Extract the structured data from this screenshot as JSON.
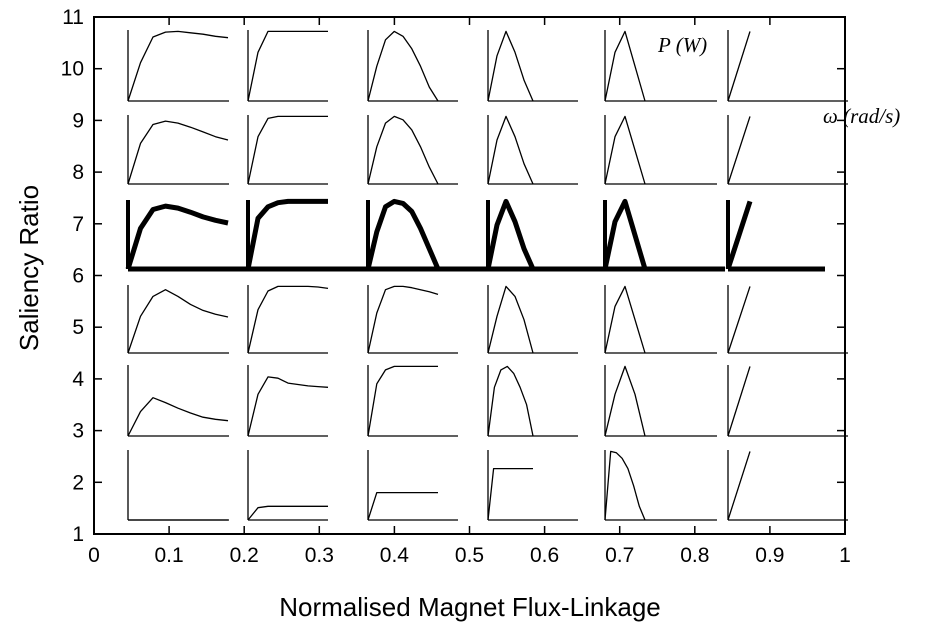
{
  "chart_data": {
    "type": "line",
    "title": "",
    "xlabel": "Normalised Magnet Flux-Linkage",
    "ylabel": "Saliency Ratio",
    "xlim": [
      0,
      1
    ],
    "ylim": [
      1,
      11
    ],
    "x_ticks": [
      "0",
      "0.1",
      "0.2",
      "0.3",
      "0.4",
      "0.5",
      "0.6",
      "0.7",
      "0.8",
      "0.9",
      "1"
    ],
    "y_ticks": [
      "1",
      "2",
      "3",
      "4",
      "5",
      "6",
      "7",
      "8",
      "9",
      "10",
      "11"
    ],
    "grid": false,
    "annotations": {
      "power": "P (W)",
      "speed": "ω (rad/s)"
    },
    "highlighted_row": 7,
    "curve_colors": {
      "normal": "#000000",
      "highlight": "#000000"
    },
    "rows": [
      {
        "saliency": 10,
        "curves": [
          {
            "flux": 0.1,
            "power": [
              0,
              0.55,
              0.92,
              0.99,
              1.0,
              0.98,
              0.96,
              0.93,
              0.91
            ]
          },
          {
            "flux": 0.3,
            "power": [
              0,
              0.7,
              1.0,
              1.0,
              1.0,
              1.0,
              1.0,
              1.0,
              1.0
            ]
          },
          {
            "flux": 0.4,
            "power": [
              0,
              0.5,
              0.88,
              1.0,
              0.93,
              0.75,
              0.5,
              0.2,
              0
            ]
          },
          {
            "flux": 0.55,
            "power": [
              0,
              0.65,
              1.0,
              0.7,
              0.3,
              0
            ]
          },
          {
            "flux": 0.7,
            "power": [
              0,
              0.7,
              1.0,
              0.5,
              0
            ]
          },
          {
            "flux": 0.85,
            "power": [
              0,
              1.0
            ]
          }
        ]
      },
      {
        "saliency": 8.5,
        "curves": [
          {
            "flux": 0.1,
            "power": [
              0,
              0.6,
              0.88,
              0.93,
              0.9,
              0.84,
              0.77,
              0.7,
              0.65
            ]
          },
          {
            "flux": 0.3,
            "power": [
              0,
              0.7,
              0.97,
              1.0,
              1.0,
              1.0,
              1.0,
              1.0,
              1.0
            ]
          },
          {
            "flux": 0.4,
            "power": [
              0,
              0.55,
              0.9,
              1.0,
              0.95,
              0.8,
              0.55,
              0.25,
              0
            ]
          },
          {
            "flux": 0.55,
            "power": [
              0,
              0.65,
              1.0,
              0.7,
              0.3,
              0
            ]
          },
          {
            "flux": 0.7,
            "power": [
              0,
              0.7,
              1.0,
              0.5,
              0
            ]
          },
          {
            "flux": 0.85,
            "power": [
              0,
              1.0
            ]
          }
        ]
      },
      {
        "saliency": 7,
        "curves": [
          {
            "flux": 0.1,
            "power": [
              0,
              0.6,
              0.88,
              0.93,
              0.9,
              0.84,
              0.77,
              0.72,
              0.68
            ]
          },
          {
            "flux": 0.3,
            "power": [
              0,
              0.75,
              0.92,
              0.98,
              1.0,
              1.0,
              1.0,
              1.0,
              1.0
            ]
          },
          {
            "flux": 0.4,
            "power": [
              0,
              0.55,
              0.92,
              1.0,
              0.97,
              0.85,
              0.6,
              0.3,
              0
            ]
          },
          {
            "flux": 0.55,
            "power": [
              0,
              0.65,
              1.0,
              0.7,
              0.3,
              0
            ]
          },
          {
            "flux": 0.7,
            "power": [
              0,
              0.7,
              1.0,
              0.5,
              0
            ]
          },
          {
            "flux": 0.85,
            "power": [
              0,
              1.0
            ]
          }
        ]
      },
      {
        "saliency": 5.5,
        "curves": [
          {
            "flux": 0.1,
            "power": [
              0,
              0.55,
              0.85,
              0.95,
              0.85,
              0.73,
              0.64,
              0.58,
              0.54
            ]
          },
          {
            "flux": 0.3,
            "power": [
              0,
              0.65,
              0.93,
              1.0,
              1.0,
              1.0,
              1.0,
              0.99,
              0.97
            ]
          },
          {
            "flux": 0.4,
            "power": [
              0,
              0.6,
              0.95,
              1.0,
              1.0,
              0.98,
              0.95,
              0.92,
              0.88
            ]
          },
          {
            "flux": 0.55,
            "power": [
              0,
              0.55,
              1.0,
              0.85,
              0.5,
              0
            ]
          },
          {
            "flux": 0.7,
            "power": [
              0,
              0.7,
              1.0,
              0.5,
              0
            ]
          },
          {
            "flux": 0.85,
            "power": [
              0,
              1.0
            ]
          }
        ]
      },
      {
        "saliency": 3.5,
        "curves": [
          {
            "flux": 0.1,
            "power": [
              0,
              0.35,
              0.55,
              0.48,
              0.4,
              0.33,
              0.27,
              0.24,
              0.22
            ]
          },
          {
            "flux": 0.3,
            "power": [
              0,
              0.6,
              0.85,
              0.83,
              0.76,
              0.74,
              0.72,
              0.71,
              0.7
            ]
          },
          {
            "flux": 0.4,
            "power": [
              0,
              0.75,
              0.95,
              1.0,
              1.0,
              1.0,
              1.0,
              1.0,
              1.0
            ]
          },
          {
            "flux": 0.6,
            "power": [
              0,
              0.7,
              0.95,
              1.0,
              0.9,
              0.7,
              0.45,
              0
            ]
          },
          {
            "flux": 0.7,
            "power": [
              0,
              0.6,
              1.0,
              0.6,
              0
            ]
          },
          {
            "flux": 0.85,
            "power": [
              0,
              1.0
            ]
          }
        ]
      },
      {
        "saliency": 2,
        "curves": [
          {
            "flux": 0.1,
            "power": [
              0,
              0.0,
              0.0,
              0.0,
              0.0,
              0.0,
              0.0,
              0.0,
              0.0
            ]
          },
          {
            "flux": 0.3,
            "power": [
              0,
              0.18,
              0.2,
              0.2,
              0.2,
              0.2,
              0.2,
              0.2,
              0.2
            ]
          },
          {
            "flux": 0.4,
            "power": [
              0,
              0.4,
              0.4,
              0.4,
              0.4,
              0.4,
              0.4,
              0.4,
              0.4
            ]
          },
          {
            "flux": 0.6,
            "power": [
              0,
              0.75,
              0.75,
              0.75,
              0.75,
              0.75,
              0.75,
              0.75,
              0.75
            ]
          },
          {
            "flux": 0.75,
            "power": [
              0,
              1.0,
              0.98,
              0.9,
              0.75,
              0.5,
              0.2,
              0
            ]
          },
          {
            "flux": 0.85,
            "power": [
              0,
              1.0
            ]
          }
        ]
      }
    ]
  }
}
